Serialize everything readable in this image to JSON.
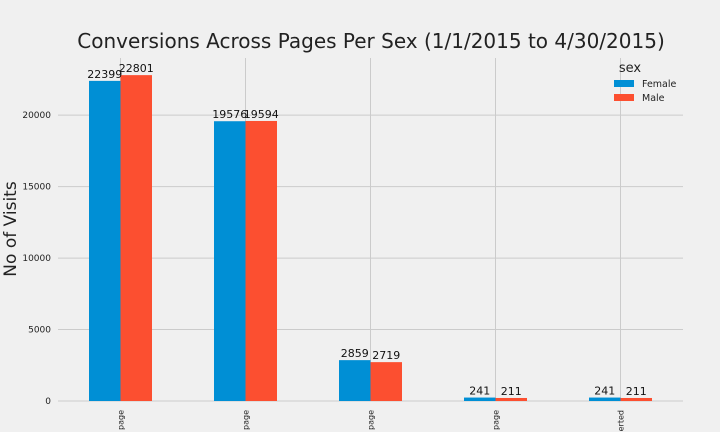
{
  "chart_data": {
    "type": "bar",
    "title": "Conversions Across Pages Per Sex (1/1/2015 to 4/30/2015)",
    "xlabel": "",
    "ylabel": "No of Visits",
    "ylim": [
      0,
      24000
    ],
    "yticks": [
      0,
      5000,
      10000,
      15000,
      20000
    ],
    "categories": [
      "page",
      "page",
      "page",
      "page",
      "erted"
    ],
    "series": [
      {
        "name": "Female",
        "color": "#008fd5",
        "values": [
          22399,
          19576,
          2859,
          241,
          241
        ]
      },
      {
        "name": "Male",
        "color": "#fc4f30",
        "values": [
          22801,
          19594,
          2719,
          211,
          211
        ]
      }
    ],
    "legend": {
      "title": "sex",
      "placement": "top-right"
    },
    "grid": true
  }
}
